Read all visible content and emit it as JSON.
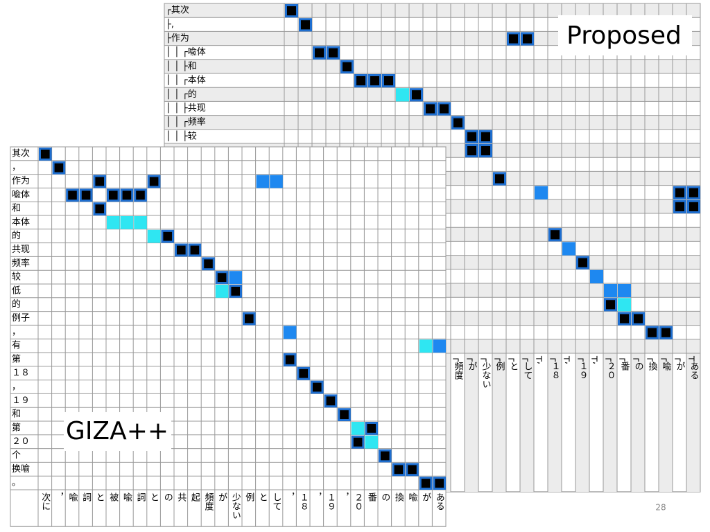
{
  "proposed": {
    "title": "Proposed",
    "row_labels": [
      "┌其次",
      "├,",
      "├作为",
      "│ │          ┌喩体",
      "│ │            ├和",
      "│ │         ┌本体",
      "│ │      ┌的",
      "│ │      ├共现",
      "│ │   ┌频率",
      "│ │   ├较"
    ],
    "col_labels": [
      null,
      null,
      null,
      null,
      null,
      null,
      null,
      null,
      null,
      null,
      null,
      null,
      "┌頻度",
      "┌が",
      "┌少ない",
      "┌例",
      "┌と",
      "┌して",
      "┬,",
      "┌１８",
      "┬,",
      "┌１９",
      "┬,",
      "┌２０",
      "┌番",
      "┌の",
      "┌換",
      "┌喩",
      "┌が",
      "┬ある"
    ],
    "black": [
      [
        0,
        0
      ],
      [
        1,
        1
      ],
      [
        2,
        16
      ],
      [
        2,
        17
      ],
      [
        3,
        2
      ],
      [
        3,
        3
      ],
      [
        4,
        4
      ],
      [
        5,
        5
      ],
      [
        5,
        6
      ],
      [
        5,
        7
      ],
      [
        6,
        9
      ],
      [
        7,
        10
      ],
      [
        7,
        11
      ],
      [
        8,
        12
      ],
      [
        9,
        13
      ],
      [
        9,
        14
      ],
      [
        10,
        13
      ],
      [
        10,
        14
      ],
      [
        12,
        15
      ],
      [
        13,
        28
      ],
      [
        13,
        29
      ],
      [
        14,
        28
      ],
      [
        14,
        29
      ],
      [
        16,
        19
      ],
      [
        18,
        21
      ],
      [
        21,
        23
      ],
      [
        22,
        24
      ],
      [
        22,
        25
      ],
      [
        23,
        26
      ],
      [
        23,
        27
      ]
    ],
    "cyan": [
      [
        6,
        8
      ],
      [
        21,
        24
      ]
    ],
    "blue": [
      [
        13,
        18
      ],
      [
        17,
        20
      ],
      [
        19,
        22
      ],
      [
        20,
        23
      ],
      [
        20,
        24
      ]
    ]
  },
  "giza": {
    "title": "GIZA++",
    "row_labels": [
      "其次",
      "，",
      "作为",
      "喩体",
      "和",
      "本体",
      "的",
      "共现",
      "频率",
      "较",
      "低",
      "的",
      "例子",
      "，",
      "有",
      "第",
      "１８",
      "，",
      "１９",
      "和",
      "第",
      "２０",
      "个",
      "换喻",
      "。"
    ],
    "col_labels": [
      "次に",
      "，",
      "喩",
      "詞",
      "と",
      "被",
      "喩",
      "詞",
      "と",
      "の",
      "共",
      "起",
      "頻度",
      "が",
      "少ない",
      "例",
      "と",
      "して",
      "，",
      "１８",
      "，",
      "１９",
      "，",
      "２０",
      "番",
      "の",
      "換",
      "喩",
      "が",
      "ある"
    ],
    "black": [
      [
        0,
        0
      ],
      [
        1,
        1
      ],
      [
        2,
        4
      ],
      [
        2,
        8
      ],
      [
        3,
        2
      ],
      [
        3,
        3
      ],
      [
        3,
        5
      ],
      [
        3,
        6
      ],
      [
        3,
        7
      ],
      [
        4,
        4
      ],
      [
        6,
        9
      ],
      [
        7,
        10
      ],
      [
        7,
        11
      ],
      [
        8,
        12
      ],
      [
        9,
        13
      ],
      [
        10,
        14
      ],
      [
        12,
        15
      ],
      [
        15,
        18
      ],
      [
        16,
        19
      ],
      [
        17,
        20
      ],
      [
        18,
        21
      ],
      [
        19,
        22
      ],
      [
        20,
        24
      ],
      [
        21,
        23
      ],
      [
        22,
        25
      ],
      [
        23,
        26
      ],
      [
        23,
        27
      ],
      [
        24,
        28
      ],
      [
        24,
        29
      ]
    ],
    "cyan": [
      [
        5,
        5
      ],
      [
        5,
        6
      ],
      [
        5,
        7
      ],
      [
        6,
        8
      ],
      [
        10,
        13
      ],
      [
        14,
        28
      ],
      [
        20,
        23
      ],
      [
        21,
        24
      ]
    ],
    "blue": [
      [
        2,
        16
      ],
      [
        2,
        17
      ],
      [
        9,
        14
      ],
      [
        13,
        18
      ],
      [
        14,
        29
      ]
    ]
  },
  "page_number": "28"
}
